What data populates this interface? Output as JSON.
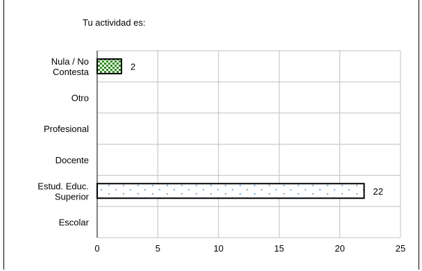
{
  "chart_data": {
    "type": "bar",
    "orientation": "horizontal",
    "title": "Tu actividad es:",
    "categories": [
      [
        "Nula / No",
        "Contesta"
      ],
      [
        "Otro"
      ],
      [
        "Profesional"
      ],
      [
        "Docente"
      ],
      [
        "Estud. Educ.",
        "Superior"
      ],
      [
        "Escolar"
      ]
    ],
    "values": [
      2,
      null,
      null,
      null,
      22,
      null
    ],
    "data_labels": [
      "2",
      "",
      "",
      "",
      "22",
      ""
    ],
    "xlim": [
      0,
      25
    ],
    "xticks": [
      "0",
      "5",
      "10",
      "15",
      "20",
      "25"
    ],
    "grid": true,
    "colors": {
      "checker_dark": "#2e8b1e",
      "checker_light": "#ffffff",
      "dot": "#7fb2e5",
      "border": "#000000",
      "grid": "#c0c0c0"
    }
  }
}
